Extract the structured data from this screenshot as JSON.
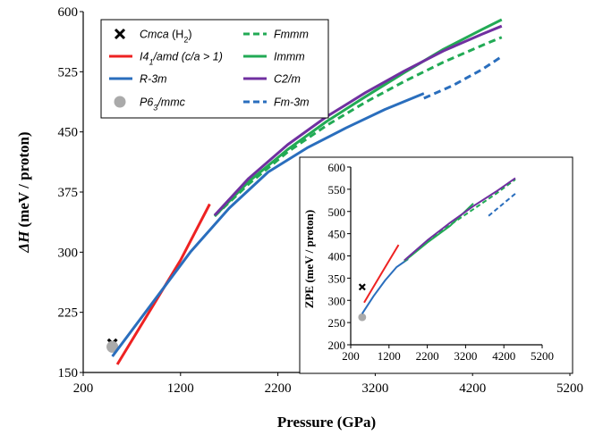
{
  "chart_data": {
    "type": "line",
    "xlabel": "Pressure (GPa)",
    "ylabel_symbol": "ΔH",
    "ylabel_unit": " (meV / proton)",
    "xlim": [
      200,
      5200
    ],
    "ylim": [
      150,
      600
    ],
    "xticks": [
      "200",
      "1200",
      "2200",
      "3200",
      "4200",
      "5200"
    ],
    "yticks": [
      "150",
      "225",
      "300",
      "375",
      "450",
      "525",
      "600"
    ],
    "legend": {
      "entries": [
        {
          "key": "cmca",
          "label": "Cmca",
          "suffix": "(H",
          "sub": "2",
          "tail": ")",
          "style": "marker-x",
          "color": "#000000"
        },
        {
          "key": "i41",
          "label": "I4",
          "sub": "1",
          "suffix": "/amd",
          "tail": "(c/a > 1)",
          "style": "solid",
          "color": "#ee2222"
        },
        {
          "key": "r3m",
          "label": "R-3m",
          "style": "solid",
          "color": "#2a6ebd"
        },
        {
          "key": "p63",
          "label": "P6",
          "sub": "3",
          "suffix": "/mmc",
          "style": "marker-circle",
          "color": "#aaaaaa"
        },
        {
          "key": "fmmm",
          "label": "Fmmm",
          "style": "dashed",
          "color": "#22aa55"
        },
        {
          "key": "immm",
          "label": "Immm",
          "style": "solid",
          "color": "#22aa55"
        },
        {
          "key": "c2m",
          "label": "C2/m",
          "style": "solid",
          "color": "#7030a0"
        },
        {
          "key": "fm3m",
          "label": "Fm-3m",
          "style": "dashed",
          "color": "#2a6ebd"
        }
      ]
    },
    "series": [
      {
        "key": "cmca",
        "type": "marker-x",
        "color": "#000000",
        "x": [
          500
        ],
        "y": [
          186
        ]
      },
      {
        "key": "p63",
        "type": "marker-circle",
        "color": "#aaaaaa",
        "x": [
          500
        ],
        "y": [
          182
        ]
      },
      {
        "key": "i41",
        "type": "line",
        "color": "#ee2222",
        "x": [
          550,
          900,
          1200,
          1500
        ],
        "y": [
          160,
          230,
          290,
          360
        ]
      },
      {
        "key": "r3m",
        "type": "line",
        "color": "#2a6ebd",
        "x": [
          500,
          900,
          1300,
          1700,
          2100,
          2500,
          2900,
          3300,
          3700
        ],
        "y": [
          170,
          235,
          300,
          355,
          400,
          430,
          455,
          478,
          498
        ]
      },
      {
        "key": "fm3m",
        "type": "dashed",
        "color": "#2a6ebd",
        "x": [
          3700,
          4000,
          4300,
          4500
        ],
        "y": [
          492,
          508,
          528,
          544
        ]
      },
      {
        "key": "fmmm",
        "type": "dashed",
        "color": "#22aa55",
        "x": [
          1550,
          1900,
          2300,
          2700,
          3100,
          3500,
          3900,
          4300,
          4500
        ],
        "y": [
          345,
          385,
          425,
          458,
          487,
          513,
          537,
          558,
          568
        ]
      },
      {
        "key": "immm",
        "type": "line",
        "color": "#22aa55",
        "x": [
          1550,
          1900,
          2300,
          2700,
          3100,
          3500,
          3900,
          4300,
          4500
        ],
        "y": [
          345,
          388,
          428,
          463,
          494,
          524,
          553,
          578,
          590
        ]
      },
      {
        "key": "c2m",
        "type": "line",
        "color": "#7030a0",
        "x": [
          1550,
          1900,
          2300,
          2700,
          3100,
          3500,
          3900,
          4300,
          4500
        ],
        "y": [
          346,
          392,
          434,
          469,
          499,
          526,
          551,
          572,
          582
        ]
      }
    ],
    "inset": {
      "ylabel": "ZPE (meV / proton)",
      "xlim": [
        200,
        5200
      ],
      "ylim": [
        200,
        600
      ],
      "xticks": [
        "200",
        "1200",
        "2200",
        "3200",
        "4200",
        "5200"
      ],
      "yticks": [
        "200",
        "250",
        "300",
        "350",
        "400",
        "450",
        "500",
        "550",
        "600"
      ],
      "series": [
        {
          "key": "cmca",
          "type": "marker-x",
          "color": "#000000",
          "x": [
            500
          ],
          "y": [
            330
          ]
        },
        {
          "key": "p63",
          "type": "marker-circle",
          "color": "#aaaaaa",
          "x": [
            500
          ],
          "y": [
            262
          ]
        },
        {
          "key": "i41",
          "type": "line",
          "color": "#ee2222",
          "x": [
            550,
            1000,
            1450
          ],
          "y": [
            295,
            360,
            425
          ]
        },
        {
          "key": "r3m",
          "type": "line",
          "color": "#2a6ebd",
          "x": [
            500,
            800,
            1100,
            1400,
            1700
          ],
          "y": [
            270,
            310,
            345,
            375,
            393
          ]
        },
        {
          "key": "fmmm",
          "type": "dashed",
          "color": "#22aa55",
          "x": [
            1600,
            2200,
            2800,
            3400,
            4000,
            4500
          ],
          "y": [
            388,
            432,
            470,
            505,
            540,
            572
          ]
        },
        {
          "key": "immm",
          "type": "line",
          "color": "#22aa55",
          "x": [
            1600,
            2200,
            2800,
            3400
          ],
          "y": [
            388,
            430,
            468,
            518
          ]
        },
        {
          "key": "c2m",
          "type": "line",
          "color": "#7030a0",
          "x": [
            1600,
            2200,
            2800,
            3400,
            4000,
            4500
          ],
          "y": [
            390,
            435,
            475,
            512,
            545,
            575
          ]
        },
        {
          "key": "fm3m",
          "type": "dashed",
          "color": "#2a6ebd",
          "x": [
            3800,
            4500
          ],
          "y": [
            490,
            540
          ]
        }
      ]
    }
  }
}
